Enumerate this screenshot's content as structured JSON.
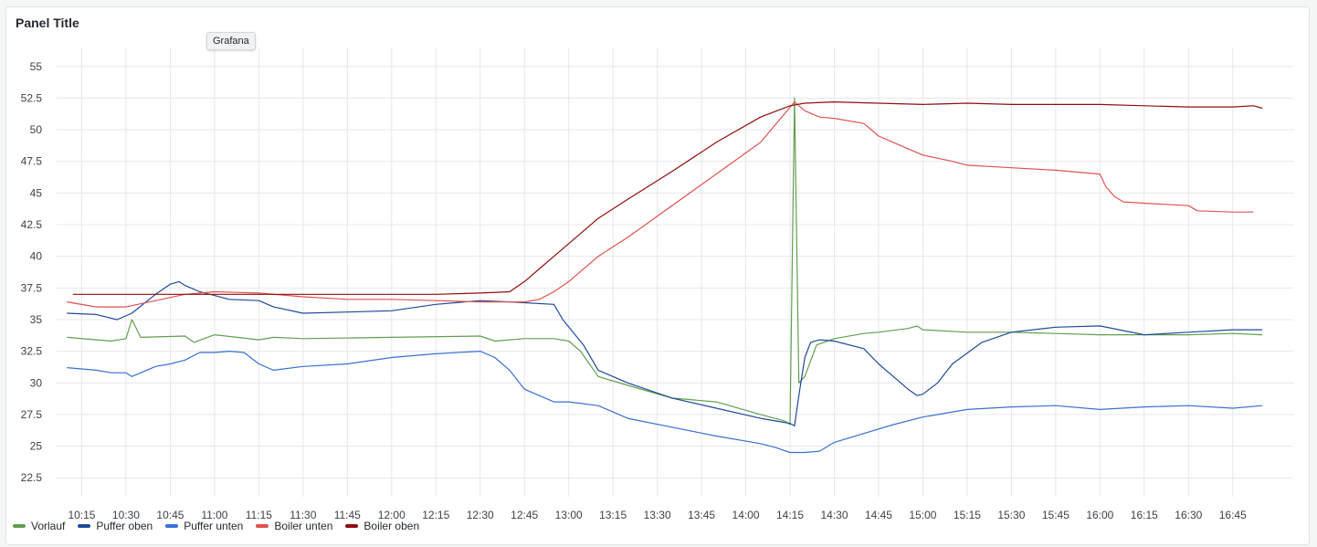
{
  "panel": {
    "title": "Panel Title",
    "tooltip": "Grafana"
  },
  "colors": {
    "Vorlauf": "#629e51",
    "Puffer oben": "#1f4a99",
    "Puffer unten": "#3a6fd1",
    "Boiler unten": "#e05252",
    "Boiler oben": "#8f0e0e"
  },
  "chart_data": {
    "type": "line",
    "y_ticks": [
      "55",
      "52.5",
      "50",
      "47.5",
      "45",
      "42.5",
      "40",
      "37.5",
      "35",
      "32.5",
      "30",
      "27.5",
      "25",
      "22.5"
    ],
    "ylim": [
      21,
      56.5
    ],
    "x_ticks": [
      "10:15",
      "10:30",
      "10:45",
      "11:00",
      "11:15",
      "11:30",
      "11:45",
      "12:00",
      "12:15",
      "12:30",
      "12:45",
      "13:00",
      "13:15",
      "13:30",
      "13:45",
      "14:00",
      "14:15",
      "14:30",
      "14:45",
      "15:00",
      "15:15",
      "15:30",
      "15:45",
      "16:00",
      "16:15",
      "16:30",
      "16:45"
    ],
    "x_ticks_min": [
      615,
      630,
      645,
      660,
      675,
      690,
      705,
      720,
      735,
      750,
      765,
      780,
      795,
      810,
      825,
      840,
      855,
      870,
      885,
      900,
      915,
      930,
      945,
      960,
      975,
      990,
      1005
    ],
    "xlim_min": [
      606.5,
      1025.5
    ],
    "series": [
      {
        "name": "Vorlauf",
        "x": [
          610,
          625,
          630,
          632,
          635,
          650,
          653,
          660,
          675,
          680,
          690,
          720,
          750,
          755,
          765,
          775,
          780,
          784,
          790,
          800,
          815,
          830,
          845,
          853,
          855,
          856.5,
          858,
          860,
          864,
          870,
          880,
          885,
          895,
          898,
          900,
          915,
          930,
          945,
          960,
          975,
          990,
          1005,
          1015
        ],
        "y": [
          33.6,
          33.3,
          33.5,
          35.0,
          33.6,
          33.7,
          33.2,
          33.8,
          33.4,
          33.6,
          33.5,
          33.6,
          33.7,
          33.3,
          33.5,
          33.5,
          33.3,
          32.5,
          30.5,
          29.8,
          28.8,
          28.5,
          27.5,
          27.0,
          26.7,
          52.5,
          30.0,
          30.5,
          33.0,
          33.5,
          33.9,
          34.0,
          34.3,
          34.5,
          34.2,
          34.0,
          34.0,
          33.9,
          33.8,
          33.8,
          33.8,
          33.9,
          33.8
        ]
      },
      {
        "name": "Puffer oben",
        "x": [
          610,
          620,
          627,
          632,
          640,
          645,
          648,
          650,
          655,
          660,
          665,
          675,
          680,
          690,
          705,
          720,
          735,
          750,
          760,
          775,
          778,
          785,
          790,
          800,
          815,
          830,
          845,
          855,
          856.5,
          858,
          860,
          862,
          865,
          870,
          880,
          885,
          890,
          895,
          898,
          900,
          905,
          910,
          920,
          930,
          945,
          960,
          975,
          990,
          1005,
          1015
        ],
        "y": [
          35.5,
          35.4,
          35.0,
          35.5,
          37.0,
          37.8,
          38.0,
          37.7,
          37.2,
          36.9,
          36.6,
          36.5,
          36.0,
          35.5,
          35.6,
          35.7,
          36.2,
          36.5,
          36.4,
          36.2,
          35.0,
          33.0,
          31.0,
          30.0,
          28.8,
          28.0,
          27.2,
          26.8,
          26.6,
          29.0,
          32.0,
          33.2,
          33.4,
          33.3,
          32.7,
          31.5,
          30.5,
          29.5,
          29.0,
          29.1,
          30.0,
          31.5,
          33.2,
          34.0,
          34.4,
          34.5,
          33.8,
          34.0,
          34.2,
          34.2
        ]
      },
      {
        "name": "Puffer unten",
        "x": [
          610,
          620,
          625,
          630,
          632,
          640,
          645,
          650,
          655,
          660,
          665,
          670,
          675,
          680,
          690,
          705,
          720,
          735,
          750,
          755,
          760,
          765,
          775,
          780,
          790,
          800,
          815,
          830,
          845,
          850,
          855,
          860,
          865,
          870,
          880,
          890,
          900,
          915,
          930,
          945,
          960,
          975,
          990,
          1005,
          1015
        ],
        "y": [
          31.2,
          31.0,
          30.8,
          30.8,
          30.5,
          31.3,
          31.5,
          31.8,
          32.4,
          32.4,
          32.5,
          32.4,
          31.5,
          31.0,
          31.3,
          31.5,
          32.0,
          32.3,
          32.5,
          32.0,
          31.0,
          29.5,
          28.5,
          28.5,
          28.2,
          27.2,
          26.5,
          25.8,
          25.2,
          24.9,
          24.5,
          24.5,
          24.6,
          25.3,
          26.0,
          26.7,
          27.3,
          27.9,
          28.1,
          28.2,
          27.9,
          28.1,
          28.2,
          28.0,
          28.2
        ]
      },
      {
        "name": "Boiler unten",
        "x": [
          610,
          620,
          630,
          640,
          650,
          660,
          675,
          690,
          705,
          720,
          735,
          750,
          765,
          770,
          775,
          780,
          790,
          800,
          815,
          830,
          845,
          856.5,
          860,
          865,
          870,
          880,
          885,
          890,
          895,
          900,
          910,
          915,
          930,
          945,
          960,
          962,
          965,
          968,
          975,
          990,
          993,
          1005,
          1012
        ],
        "y": [
          36.4,
          36.0,
          36.0,
          36.5,
          37.0,
          37.2,
          37.1,
          36.8,
          36.6,
          36.6,
          36.5,
          36.4,
          36.4,
          36.6,
          37.2,
          38.0,
          40.0,
          41.5,
          44.0,
          46.5,
          49.0,
          52.2,
          51.5,
          51.0,
          50.9,
          50.5,
          49.5,
          49.0,
          48.5,
          48.0,
          47.5,
          47.2,
          47.0,
          46.8,
          46.5,
          45.5,
          44.7,
          44.3,
          44.2,
          44.0,
          43.6,
          43.5,
          43.5
        ]
      },
      {
        "name": "Boiler oben",
        "x": [
          612,
          630,
          660,
          690,
          720,
          735,
          750,
          760,
          765,
          770,
          775,
          780,
          790,
          800,
          815,
          830,
          845,
          855,
          860,
          870,
          885,
          900,
          915,
          930,
          945,
          960,
          975,
          990,
          1000,
          1005,
          1012,
          1015
        ],
        "y": [
          37.0,
          37.0,
          37.0,
          37.0,
          37.0,
          37.0,
          37.1,
          37.2,
          38.0,
          39.0,
          40.0,
          41.0,
          43.0,
          44.5,
          46.7,
          49.0,
          51.0,
          51.9,
          52.1,
          52.2,
          52.1,
          52.0,
          52.1,
          52.0,
          52.0,
          52.0,
          51.9,
          51.8,
          51.8,
          51.8,
          51.9,
          51.7
        ]
      }
    ]
  }
}
